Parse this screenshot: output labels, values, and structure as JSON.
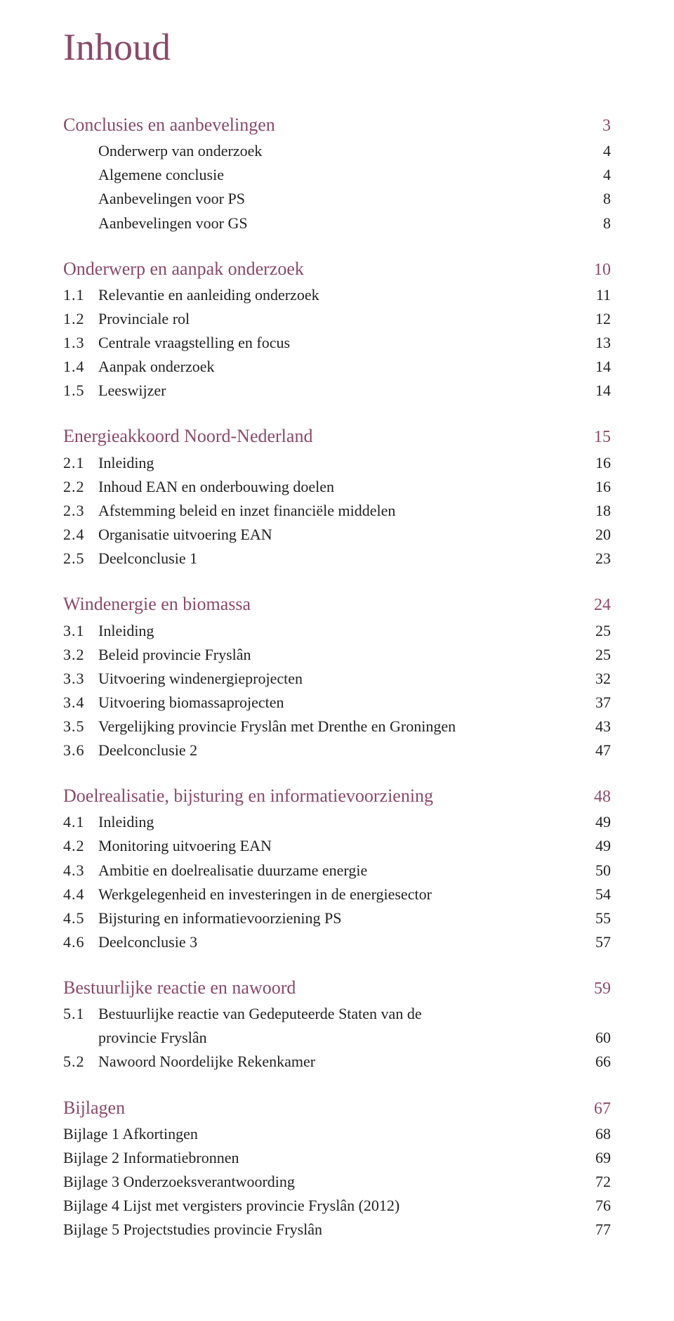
{
  "colors": {
    "heading": "#8a4a6a",
    "body": "#222222",
    "background": "#ffffff"
  },
  "typography": {
    "title_fontsize_pt": 40,
    "heading_fontsize_pt": 19,
    "body_fontsize_pt": 16,
    "font_family": "Georgia / serif"
  },
  "title": "Inhoud",
  "sections": [
    {
      "heading": {
        "label": "Conclusies en aanbevelingen",
        "page": "3"
      },
      "entries": [
        {
          "num": "",
          "label": "Onderwerp van onderzoek",
          "page": "4"
        },
        {
          "num": "",
          "label": "Algemene conclusie",
          "page": "4"
        },
        {
          "num": "",
          "label": "Aanbevelingen voor PS",
          "page": "8"
        },
        {
          "num": "",
          "label": "Aanbevelingen voor GS",
          "page": "8"
        }
      ]
    },
    {
      "heading": {
        "label": "Onderwerp en aanpak onderzoek",
        "page": "10"
      },
      "entries": [
        {
          "num": "1.1",
          "label": "Relevantie en aanleiding onderzoek",
          "page": "11"
        },
        {
          "num": "1.2",
          "label": "Provinciale rol",
          "page": "12"
        },
        {
          "num": "1.3",
          "label": "Centrale vraagstelling en focus",
          "page": "13"
        },
        {
          "num": "1.4",
          "label": "Aanpak onderzoek",
          "page": "14"
        },
        {
          "num": "1.5",
          "label": "Leeswijzer",
          "page": "14"
        }
      ]
    },
    {
      "heading": {
        "label": "Energieakkoord Noord-Nederland",
        "page": "15"
      },
      "entries": [
        {
          "num": "2.1",
          "label": "Inleiding",
          "page": "16"
        },
        {
          "num": "2.2",
          "label": "Inhoud EAN en onderbouwing doelen",
          "page": "16"
        },
        {
          "num": "2.3",
          "label": "Afstemming beleid en inzet financiële middelen",
          "page": "18"
        },
        {
          "num": "2.4",
          "label": "Organisatie uitvoering EAN",
          "page": "20"
        },
        {
          "num": "2.5",
          "label": "Deelconclusie 1",
          "page": "23"
        }
      ]
    },
    {
      "heading": {
        "label": "Windenergie en biomassa",
        "page": "24"
      },
      "entries": [
        {
          "num": "3.1",
          "label": "Inleiding",
          "page": "25"
        },
        {
          "num": "3.2",
          "label": "Beleid provincie Fryslân",
          "page": "25"
        },
        {
          "num": "3.3",
          "label": "Uitvoering windenergieprojecten",
          "page": "32"
        },
        {
          "num": "3.4",
          "label": "Uitvoering biomassaprojecten",
          "page": "37"
        },
        {
          "num": "3.5",
          "label": "Vergelijking provincie Fryslân met Drenthe en Groningen",
          "page": "43"
        },
        {
          "num": "3.6",
          "label": "Deelconclusie 2",
          "page": "47"
        }
      ]
    },
    {
      "heading": {
        "label": "Doelrealisatie, bijsturing en informatievoorziening",
        "page": "48"
      },
      "entries": [
        {
          "num": "4.1",
          "label": "Inleiding",
          "page": "49"
        },
        {
          "num": "4.2",
          "label": "Monitoring uitvoering EAN",
          "page": "49"
        },
        {
          "num": "4.3",
          "label": "Ambitie en doelrealisatie duurzame energie",
          "page": "50"
        },
        {
          "num": "4.4",
          "label": "Werkgelegenheid en investeringen in de energiesector",
          "page": "54"
        },
        {
          "num": "4.5",
          "label": "Bijsturing en informatievoorziening PS",
          "page": "55"
        },
        {
          "num": "4.6",
          "label": "Deelconclusie 3",
          "page": "57"
        }
      ]
    },
    {
      "heading": {
        "label": "Bestuurlijke reactie en nawoord",
        "page": "59"
      },
      "entries": [
        {
          "num": "5.1",
          "label": "Bestuurlijke reactie van Gedeputeerde Staten van de",
          "cont": "provincie Fryslân",
          "page": "60"
        },
        {
          "num": "5.2",
          "label": "Nawoord Noordelijke Rekenkamer",
          "page": "66"
        }
      ]
    },
    {
      "heading": {
        "label": "Bijlagen",
        "page": "67"
      },
      "entries": [
        {
          "num": "",
          "label": "Bijlage 1 Afkortingen",
          "page": "68",
          "noind": true
        },
        {
          "num": "",
          "label": "Bijlage 2 Informatiebronnen",
          "page": "69",
          "noind": true
        },
        {
          "num": "",
          "label": "Bijlage 3 Onderzoeksverantwoording",
          "page": "72",
          "noind": true
        },
        {
          "num": "",
          "label": "Bijlage 4 Lijst met vergisters provincie Fryslân (2012)",
          "page": "76",
          "noind": true
        },
        {
          "num": "",
          "label": "Bijlage 5 Projectstudies provincie Fryslân",
          "page": "77",
          "noind": true
        }
      ]
    }
  ]
}
